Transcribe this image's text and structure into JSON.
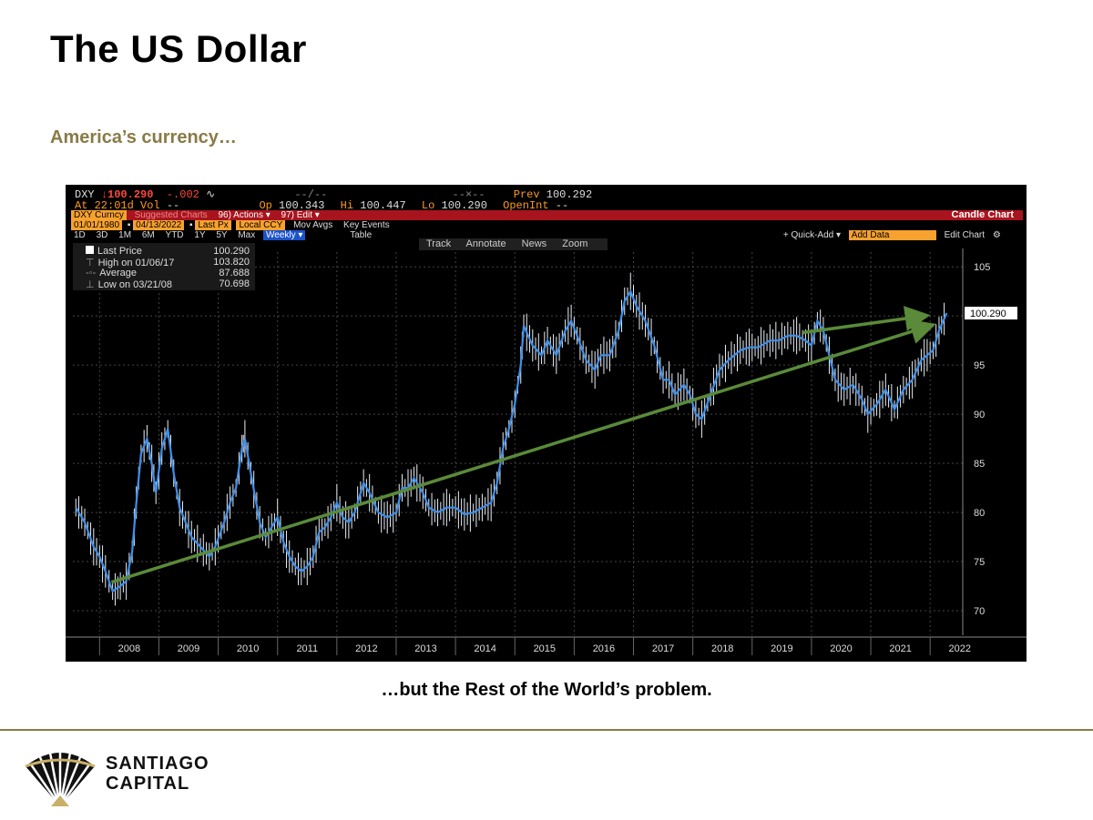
{
  "slide": {
    "title": "The US Dollar",
    "subtitle": "America’s currency…",
    "caption": "…but the Rest of the World’s problem.",
    "logo_line1": "SANTIAGO",
    "logo_line2": "CAPITAL"
  },
  "terminal": {
    "ticker": "DXY",
    "last_price": "100.290",
    "change": "-.002",
    "open_label": "Op",
    "open": "100.343",
    "high_label": "Hi",
    "high": "100.447",
    "low_label": "Lo",
    "low": "100.290",
    "prev_label": "Prev",
    "prev": "100.292",
    "time_label": "At 22:01d",
    "vol_label": "Vol",
    "vol": "--",
    "open_int_label": "OpenInt",
    "open_int": "--",
    "security": "DXY Curncy",
    "suggested": "Suggested Charts",
    "actions": "96) Actions ▾",
    "edit": "97) Edit ▾",
    "chart_type": "Candle Chart",
    "start_date": "01/01/1980",
    "end_date": "04/13/2022",
    "field": "Last Px",
    "currency": "Local CCY",
    "mov_avgs": "Mov Avgs",
    "key_events": "Key Events",
    "periods": [
      "1D",
      "3D",
      "1M",
      "6M",
      "YTD",
      "1Y",
      "5Y",
      "Max"
    ],
    "frequency": "Weekly ▾",
    "table_label": "Table",
    "quick_add": "+ Quick-Add ▾",
    "add_data": "Add Data",
    "edit_chart": "Edit Chart",
    "tools": [
      "Track",
      "Annotate",
      "News",
      "Zoom"
    ]
  },
  "legend": {
    "rows": [
      {
        "label": "Last Price",
        "value": "100.290"
      },
      {
        "label": "High on 01/06/17",
        "value": "103.820"
      },
      {
        "label": "Average",
        "value": "87.688"
      },
      {
        "label": "Low on 03/21/08",
        "value": "70.698"
      }
    ]
  },
  "chart_data": {
    "type": "line",
    "series": [
      {
        "x": [
          2007.6,
          2007.75,
          2007.9,
          2008.0,
          2008.1,
          2008.22,
          2008.35,
          2008.45,
          2008.55,
          2008.62,
          2008.7,
          2008.8,
          2008.88,
          2008.95,
          2009.05,
          2009.15,
          2009.25,
          2009.35,
          2009.45,
          2009.55,
          2009.7,
          2009.85,
          2009.95,
          2010.1,
          2010.2,
          2010.3,
          2010.4,
          2010.45,
          2010.55,
          2010.7,
          2010.8,
          2010.9,
          2011.0,
          2011.1,
          2011.2,
          2011.3,
          2011.4,
          2011.5,
          2011.6,
          2011.7,
          2011.8,
          2011.9,
          2012.0,
          2012.1,
          2012.2,
          2012.3,
          2012.45,
          2012.55,
          2012.7,
          2012.85,
          2013.0,
          2013.1,
          2013.2,
          2013.3,
          2013.45,
          2013.55,
          2013.7,
          2013.85,
          2014.0,
          2014.15,
          2014.3,
          2014.45,
          2014.6,
          2014.7,
          2014.8,
          2014.9,
          2015.0,
          2015.1,
          2015.15,
          2015.3,
          2015.45,
          2015.55,
          2015.7,
          2015.85,
          2015.95,
          2016.05,
          2016.2,
          2016.35,
          2016.45,
          2016.6,
          2016.75,
          2016.85,
          2016.95,
          2017.05,
          2017.2,
          2017.35,
          2017.5,
          2017.6,
          2017.7,
          2017.85,
          2017.95,
          2018.05,
          2018.15,
          2018.3,
          2018.45,
          2018.6,
          2018.8,
          2018.95,
          2019.1,
          2019.3,
          2019.45,
          2019.6,
          2019.75,
          2019.9,
          2020.0,
          2020.1,
          2020.2,
          2020.3,
          2020.4,
          2020.55,
          2020.7,
          2020.85,
          2020.95,
          2021.1,
          2021.25,
          2021.4,
          2021.55,
          2021.7,
          2021.85,
          2021.95,
          2022.05,
          2022.15,
          2022.28
        ],
        "values": [
          80.5,
          79.0,
          76.5,
          75.5,
          74.0,
          72.0,
          72.5,
          73.0,
          76.0,
          81.0,
          86.0,
          87.5,
          85.0,
          82.0,
          86.5,
          88.5,
          84.0,
          80.5,
          79.0,
          77.5,
          76.5,
          75.5,
          76.5,
          79.0,
          81.0,
          82.5,
          86.5,
          87.5,
          84.0,
          79.0,
          77.5,
          78.5,
          79.5,
          77.0,
          75.5,
          74.5,
          74.0,
          74.5,
          75.5,
          78.0,
          78.5,
          79.5,
          81.0,
          79.5,
          79.0,
          80.0,
          83.0,
          82.0,
          80.0,
          79.5,
          80.0,
          82.5,
          82.5,
          83.5,
          82.0,
          80.5,
          80.0,
          80.5,
          80.5,
          79.8,
          80.0,
          80.5,
          81.0,
          83.0,
          86.5,
          88.5,
          91.0,
          95.0,
          99.0,
          97.0,
          96.0,
          97.5,
          96.0,
          98.5,
          99.5,
          98.0,
          95.5,
          94.5,
          96.0,
          96.0,
          98.5,
          101.5,
          102.5,
          101.0,
          99.5,
          97.0,
          93.5,
          93.5,
          92.0,
          93.0,
          92.0,
          90.0,
          89.5,
          92.0,
          94.5,
          95.5,
          96.5,
          96.8,
          96.8,
          97.5,
          97.5,
          98.0,
          98.0,
          97.5,
          97.0,
          99.5,
          98.5,
          96.0,
          93.5,
          92.5,
          93.0,
          91.5,
          90.0,
          91.0,
          92.5,
          90.5,
          92.5,
          93.5,
          95.5,
          96.0,
          96.5,
          98.5,
          100.29
        ]
      }
    ],
    "trendlines": [
      {
        "from": [
          2008.2,
          72.9
        ],
        "to": [
          2022.0,
          99.0
        ]
      },
      {
        "from": [
          2019.85,
          98.3
        ],
        "to": [
          2021.9,
          100.0
        ]
      }
    ],
    "xticks": [
      "2008",
      "2009",
      "2010",
      "2011",
      "2012",
      "2013",
      "2014",
      "2015",
      "2016",
      "2017",
      "2018",
      "2019",
      "2020",
      "2021",
      "2022"
    ],
    "yticks": [
      70,
      75,
      80,
      85,
      90,
      95,
      100,
      105
    ],
    "ylim": [
      67.5,
      106.5
    ],
    "xlim": [
      2007.55,
      2022.55
    ],
    "last_value_label": "100.290",
    "grid": true,
    "colors": {
      "line": "#3f8fe8",
      "candle": "#e8eef5",
      "trend": "#5a8a3a",
      "background": "#000000"
    }
  }
}
